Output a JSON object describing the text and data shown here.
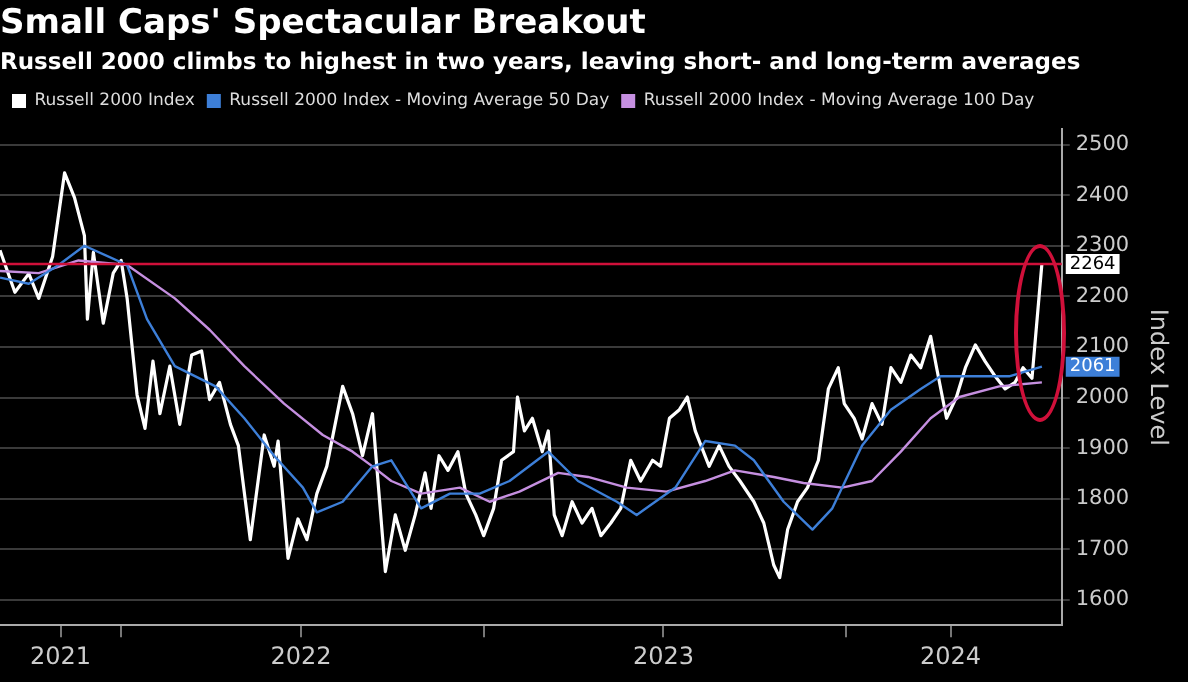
{
  "chart_data": {
    "type": "line",
    "title": "Small Caps' Spectacular Breakout",
    "subtitle": "Russell 2000 climbs to highest in two years, leaving short- and long-term averages",
    "ylabel": "Index Level",
    "xlim": [
      "2021-09-01",
      "2024-08-05"
    ],
    "xticks": [
      {
        "value": "2021-11-01",
        "label": "2021"
      },
      {
        "value": "2022-01-01",
        "label": null
      },
      {
        "value": "2022-07-01",
        "label": "2022"
      },
      {
        "value": "2023-01-01",
        "label": null
      },
      {
        "value": "2023-07-01",
        "label": "2023"
      },
      {
        "value": "2024-01-01",
        "label": null
      },
      {
        "value": "2024-04-15",
        "label": "2024"
      }
    ],
    "ylim": [
      1550,
      2530
    ],
    "yticks": [
      1600,
      1700,
      1800,
      1900,
      2000,
      2100,
      2200,
      2300,
      2400,
      2500
    ],
    "grid": "y",
    "legend": "top left",
    "marker": "none",
    "line_style": "solid",
    "ref_lines": [
      {
        "axis": "y",
        "value": 2264,
        "color": "#d0103a"
      }
    ],
    "series": [
      {
        "name": "Russell 2000 Index",
        "color": "#ffffff",
        "x": [
          "2021-09-01",
          "2021-09-16",
          "2021-09-30",
          "2021-10-10",
          "2021-10-24",
          "2021-11-05",
          "2021-11-15",
          "2021-11-25",
          "2021-11-28",
          "2021-12-04",
          "2021-12-14",
          "2021-12-24",
          "2022-01-01",
          "2022-01-07",
          "2022-01-17",
          "2022-01-25",
          "2022-02-02",
          "2022-02-09",
          "2022-02-19",
          "2022-03-01",
          "2022-03-13",
          "2022-03-23",
          "2022-03-31",
          "2022-04-10",
          "2022-04-21",
          "2022-04-29",
          "2022-05-11",
          "2022-05-25",
          "2022-06-04",
          "2022-06-08",
          "2022-06-18",
          "2022-06-28",
          "2022-07-07",
          "2022-07-17",
          "2022-07-27",
          "2022-08-12",
          "2022-08-22",
          "2022-09-01",
          "2022-09-11",
          "2022-09-24",
          "2022-10-04",
          "2022-10-14",
          "2022-10-24",
          "2022-11-03",
          "2022-11-09",
          "2022-11-17",
          "2022-11-26",
          "2022-12-06",
          "2022-12-14",
          "2022-12-24",
          "2023-01-01",
          "2023-01-11",
          "2023-01-19",
          "2023-01-31",
          "2023-02-04",
          "2023-02-11",
          "2023-02-19",
          "2023-03-01",
          "2023-03-07",
          "2023-03-13",
          "2023-03-21",
          "2023-03-31",
          "2023-04-10",
          "2023-04-20",
          "2023-04-29",
          "2023-05-09",
          "2023-05-19",
          "2023-05-29",
          "2023-06-08",
          "2023-06-20",
          "2023-06-28",
          "2023-07-07",
          "2023-07-17",
          "2023-07-25",
          "2023-08-02",
          "2023-08-16",
          "2023-08-26",
          "2023-09-05",
          "2023-09-16",
          "2023-09-30",
          "2023-10-10",
          "2023-10-20",
          "2023-10-26",
          "2023-11-03",
          "2023-11-13",
          "2023-11-23",
          "2023-12-04",
          "2023-12-14",
          "2023-12-24",
          "2023-12-30",
          "2024-01-09",
          "2024-01-17",
          "2024-01-27",
          "2024-02-06",
          "2024-02-15",
          "2024-02-25",
          "2024-03-06",
          "2024-03-16",
          "2024-03-26",
          "2024-04-01",
          "2024-04-11",
          "2024-04-21",
          "2024-04-30",
          "2024-05-10",
          "2024-05-20",
          "2024-05-30",
          "2024-06-09",
          "2024-06-19",
          "2024-06-27",
          "2024-07-06",
          "2024-07-16"
        ],
        "values": [
          2291,
          2208,
          2245,
          2196,
          2279,
          2444,
          2395,
          2320,
          2155,
          2287,
          2147,
          2246,
          2271,
          2196,
          2005,
          1939,
          2072,
          1968,
          2062,
          1947,
          2084,
          2092,
          1996,
          2030,
          1947,
          1905,
          1719,
          1926,
          1864,
          1914,
          1682,
          1760,
          1719,
          1810,
          1864,
          2022,
          1968,
          1885,
          1968,
          1656,
          1768,
          1698,
          1768,
          1851,
          1781,
          1885,
          1856,
          1893,
          1810,
          1768,
          1727,
          1781,
          1876,
          1893,
          2001,
          1934,
          1959,
          1893,
          1934,
          1768,
          1727,
          1794,
          1752,
          1781,
          1727,
          1752,
          1781,
          1876,
          1835,
          1876,
          1864,
          1959,
          1976,
          2001,
          1934,
          1864,
          1905,
          1864,
          1835,
          1794,
          1752,
          1669,
          1644,
          1739,
          1794,
          1822,
          1876,
          2017,
          2059,
          1988,
          1959,
          1918,
          1988,
          1947,
          2059,
          2030,
          2084,
          2059,
          2121,
          2059,
          1959,
          2001,
          2059,
          2104,
          2071,
          2042,
          2017,
          2030,
          2059,
          2038,
          2264
        ],
        "value_labels": [
          null,
          null,
          null,
          null,
          null,
          null,
          null,
          null,
          null,
          null,
          null,
          null,
          null,
          null,
          null,
          null,
          null,
          null,
          null,
          null,
          null,
          null,
          null,
          null,
          null,
          null,
          null,
          null,
          null,
          null,
          null,
          null,
          null,
          null,
          null,
          null,
          null,
          null,
          null,
          null,
          null,
          null,
          null,
          null,
          null,
          null,
          null,
          null,
          null,
          null,
          null,
          null,
          null,
          null,
          null,
          null,
          null,
          null,
          null,
          null,
          null,
          null,
          null,
          null,
          null,
          null,
          null,
          null,
          null,
          null,
          null,
          null,
          null,
          null,
          null,
          null,
          null,
          null,
          null,
          null,
          null,
          null,
          null,
          null,
          null,
          null,
          null,
          null,
          null,
          null,
          null,
          null,
          null,
          null,
          null,
          null,
          null,
          null,
          null,
          null,
          null,
          null,
          null,
          null,
          null,
          null,
          null,
          null,
          null,
          null,
          "2264"
        ]
      },
      {
        "name": "Russell 2000 Index - Moving Average 50 Day",
        "color": "#3d7fd8",
        "x": [
          "2021-09-01",
          "2021-09-30",
          "2021-10-30",
          "2021-11-25",
          "2022-01-07",
          "2022-01-27",
          "2022-02-24",
          "2022-04-06",
          "2022-05-05",
          "2022-06-04",
          "2022-07-03",
          "2022-07-17",
          "2022-08-12",
          "2022-09-11",
          "2022-09-30",
          "2022-10-30",
          "2022-11-28",
          "2022-12-28",
          "2023-01-27",
          "2023-03-07",
          "2023-04-06",
          "2023-05-15",
          "2023-06-04",
          "2023-07-13",
          "2023-08-12",
          "2023-09-11",
          "2023-09-30",
          "2023-10-30",
          "2023-11-28",
          "2023-12-18",
          "2024-01-17",
          "2024-02-15",
          "2024-03-16",
          "2024-04-05",
          "2024-05-14",
          "2024-06-13",
          "2024-07-16"
        ],
        "values": [
          2237,
          2225,
          2262,
          2300,
          2262,
          2155,
          2062,
          2022,
          1959,
          1885,
          1822,
          1773,
          1794,
          1864,
          1876,
          1781,
          1810,
          1810,
          1835,
          1893,
          1835,
          1794,
          1768,
          1822,
          1914,
          1905,
          1876,
          1794,
          1739,
          1781,
          1905,
          1976,
          2017,
          2042,
          2042,
          2042,
          2061
        ],
        "value_labels": [
          null,
          null,
          null,
          null,
          null,
          null,
          null,
          null,
          null,
          null,
          null,
          null,
          null,
          null,
          null,
          null,
          null,
          null,
          null,
          null,
          null,
          null,
          null,
          null,
          null,
          null,
          null,
          null,
          null,
          null,
          null,
          null,
          null,
          null,
          null,
          null,
          "2061"
        ]
      },
      {
        "name": "Russell 2000 Index - Moving Average 100 Day",
        "color": "#c58fe0",
        "x": [
          "2021-09-01",
          "2021-10-10",
          "2021-11-19",
          "2022-01-07",
          "2022-02-24",
          "2022-03-31",
          "2022-05-05",
          "2022-06-14",
          "2022-07-23",
          "2022-08-22",
          "2022-09-11",
          "2022-09-30",
          "2022-10-30",
          "2022-12-08",
          "2023-01-07",
          "2023-02-06",
          "2023-03-17",
          "2023-04-16",
          "2023-05-25",
          "2023-07-04",
          "2023-08-12",
          "2023-09-11",
          "2023-10-20",
          "2023-11-19",
          "2023-12-28",
          "2024-01-27",
          "2024-02-25",
          "2024-03-26",
          "2024-04-24",
          "2024-06-03",
          "2024-07-16"
        ],
        "values": [
          2250,
          2246,
          2271,
          2262,
          2196,
          2134,
          2062,
          1988,
          1926,
          1893,
          1864,
          1835,
          1810,
          1822,
          1794,
          1814,
          1851,
          1843,
          1822,
          1814,
          1835,
          1856,
          1843,
          1831,
          1822,
          1835,
          1893,
          1959,
          2001,
          2022,
          2030
        ]
      }
    ]
  }
}
